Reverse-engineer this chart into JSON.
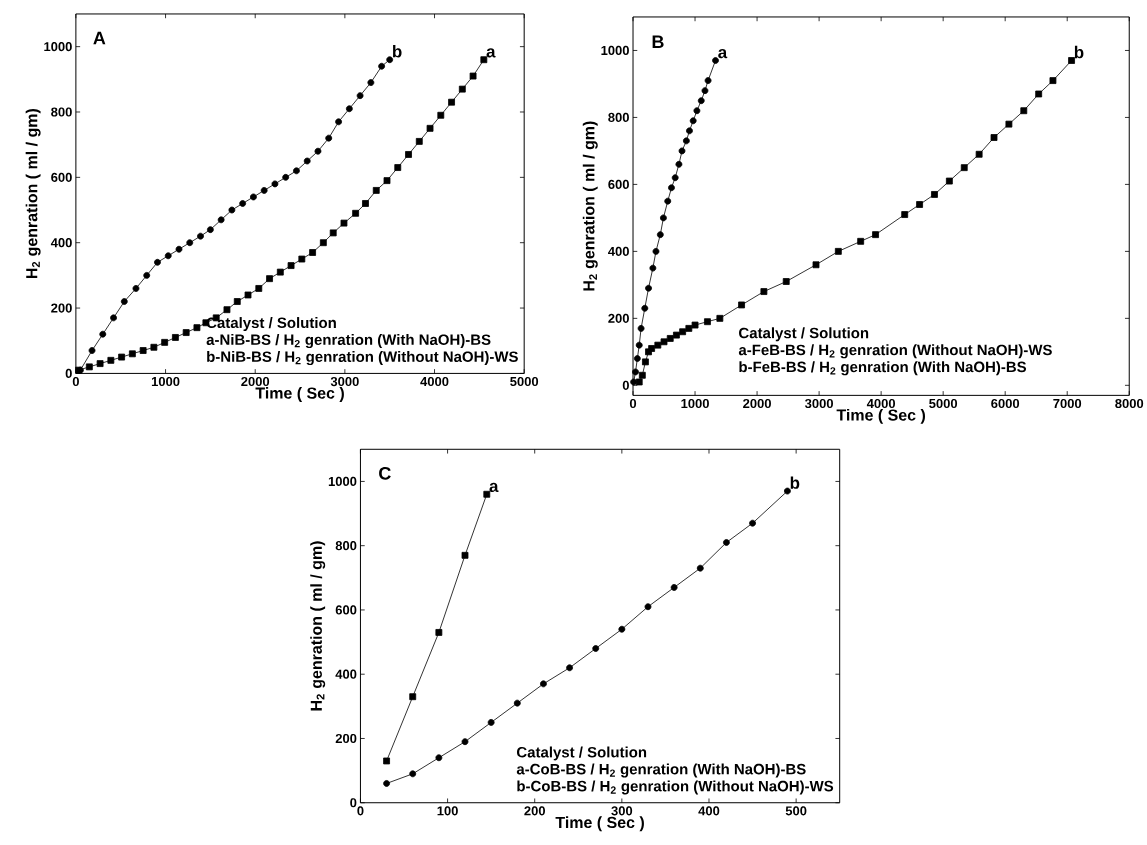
{
  "chart_data": [
    {
      "type": "line",
      "xlabel": "Time ( Sec )",
      "ylabel": "H$_{2}$ genration ( ml / gm)",
      "annotations": [
        "A",
        "Catalyst / Solution",
        "a-NiB-BS / H$_{2}$ genration (With NaOH)-BS",
        "b-NiB-BS / H$_{2}$ genration (Without NaOH)-WS"
      ],
      "xlim": [
        0,
        5000
      ],
      "ylim": [
        0,
        1100
      ],
      "xticks": [
        0,
        1000,
        2000,
        3000,
        4000,
        5000
      ],
      "yticks": [
        0,
        200,
        400,
        600,
        800,
        1000
      ],
      "line_style": "solid",
      "series": [
        {
          "name": "a",
          "color": "#000000",
          "marker": "square",
          "x": [
            30,
            150,
            270,
            390,
            510,
            630,
            750,
            870,
            990,
            1110,
            1230,
            1350,
            1450,
            1565,
            1685,
            1800,
            1920,
            2040,
            2160,
            2280,
            2400,
            2520,
            2640,
            2760,
            2870,
            2990,
            3120,
            3230,
            3350,
            3470,
            3590,
            3710,
            3830,
            3950,
            4070,
            4190,
            4310,
            4430,
            4550
          ],
          "values": [
            10,
            20,
            30,
            40,
            50,
            60,
            70,
            80,
            95,
            110,
            125,
            140,
            155,
            170,
            195,
            220,
            240,
            260,
            290,
            310,
            330,
            350,
            370,
            400,
            430,
            460,
            490,
            520,
            560,
            590,
            630,
            670,
            710,
            750,
            790,
            830,
            870,
            910,
            960
          ]
        },
        {
          "name": "b",
          "color": "#000000",
          "marker": "circle",
          "x": [
            50,
            180,
            300,
            420,
            540,
            670,
            790,
            910,
            1030,
            1150,
            1270,
            1390,
            1500,
            1620,
            1740,
            1860,
            1980,
            2100,
            2220,
            2340,
            2460,
            2580,
            2700,
            2820,
            2930,
            3050,
            3170,
            3290,
            3410,
            3500
          ],
          "values": [
            10,
            70,
            120,
            170,
            220,
            260,
            300,
            340,
            360,
            380,
            400,
            420,
            440,
            470,
            500,
            520,
            540,
            560,
            580,
            600,
            620,
            650,
            680,
            720,
            770,
            810,
            850,
            890,
            940,
            960
          ]
        }
      ]
    },
    {
      "type": "line",
      "xlabel": "Time ( Sec )",
      "ylabel": "H$_{2}$ genration ( ml / gm)",
      "annotations": [
        "B",
        "Catalyst / Solution",
        "a-FeB-BS / H$_{2}$ genration (Without NaOH)-WS",
        "b-FeB-BS / H$_{2}$ genration (With NaOH)-BS"
      ],
      "xlim": [
        0,
        8000
      ],
      "ylim": [
        -30,
        1100
      ],
      "xticks": [
        0,
        1000,
        2000,
        3000,
        4000,
        5000,
        6000,
        7000,
        8000
      ],
      "yticks": [
        0,
        200,
        400,
        600,
        800,
        1000
      ],
      "line_style": "solid",
      "series": [
        {
          "name": "a",
          "color": "#000000",
          "marker": "circle",
          "x": [
            10,
            40,
            70,
            100,
            130,
            190,
            250,
            320,
            370,
            440,
            490,
            560,
            620,
            680,
            740,
            790,
            860,
            910,
            970,
            1030,
            1100,
            1160,
            1210,
            1330
          ],
          "values": [
            10,
            40,
            80,
            120,
            170,
            230,
            290,
            350,
            400,
            450,
            500,
            550,
            590,
            620,
            660,
            700,
            730,
            760,
            790,
            820,
            850,
            880,
            910,
            970
          ]
        },
        {
          "name": "b",
          "color": "#000000",
          "marker": "square",
          "x": [
            100,
            150,
            200,
            250,
            300,
            400,
            500,
            600,
            700,
            800,
            900,
            1000,
            1200,
            1400,
            1750,
            2110,
            2470,
            2950,
            3310,
            3670,
            3910,
            4380,
            4620,
            4860,
            5100,
            5340,
            5580,
            5820,
            6060,
            6300,
            6540,
            6770,
            7070
          ],
          "values": [
            10,
            30,
            70,
            100,
            110,
            120,
            130,
            140,
            150,
            160,
            170,
            180,
            190,
            200,
            240,
            280,
            310,
            360,
            400,
            430,
            450,
            510,
            540,
            570,
            610,
            650,
            690,
            740,
            780,
            820,
            870,
            910,
            970
          ]
        }
      ]
    },
    {
      "type": "line",
      "xlabel": "Time ( Sec )",
      "ylabel": "H$_{2}$ genration ( ml / gm)",
      "annotations": [
        "C",
        "Catalyst / Solution",
        "a-CoB-BS / H$_{2}$ genration (With NaOH)-BS",
        "b-CoB-BS / H$_{2}$ genration (Without NaOH)-WS"
      ],
      "xlim": [
        0,
        550
      ],
      "ylim": [
        0,
        1100
      ],
      "xticks": [
        0,
        100,
        200,
        300,
        400,
        500
      ],
      "yticks": [
        0,
        200,
        400,
        600,
        800,
        1000
      ],
      "line_style": "solid",
      "series": [
        {
          "name": "a",
          "color": "#000000",
          "marker": "square",
          "x": [
            30,
            60,
            90,
            120,
            145
          ],
          "values": [
            130,
            330,
            530,
            770,
            960
          ]
        },
        {
          "name": "b",
          "color": "#000000",
          "marker": "circle",
          "x": [
            30,
            60,
            90,
            120,
            150,
            180,
            210,
            240,
            270,
            300,
            330,
            360,
            390,
            420,
            450,
            490
          ],
          "values": [
            60,
            90,
            140,
            190,
            250,
            310,
            370,
            420,
            480,
            540,
            610,
            670,
            730,
            810,
            870,
            970
          ]
        }
      ]
    }
  ]
}
